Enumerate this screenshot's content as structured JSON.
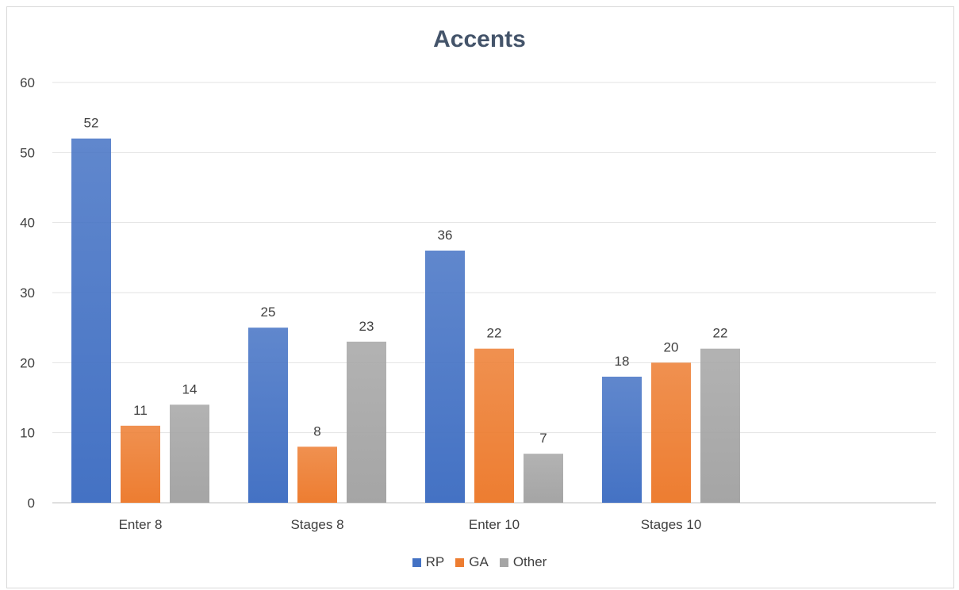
{
  "chart_data": {
    "type": "bar",
    "title": "Accents",
    "categories": [
      "Enter 8",
      "Stages 8",
      "Enter 10",
      "Stages 10"
    ],
    "series": [
      {
        "name": "RP",
        "values": [
          52,
          25,
          36,
          18
        ],
        "color": "#4472c4"
      },
      {
        "name": "GA",
        "values": [
          11,
          8,
          22,
          20
        ],
        "color": "#ed7d31"
      },
      {
        "name": "Other",
        "values": [
          14,
          23,
          7,
          22
        ],
        "color": "#a5a5a5"
      }
    ],
    "ylim": [
      0,
      60
    ],
    "yticks": [
      0,
      10,
      20,
      30,
      40,
      50,
      60
    ],
    "grid": true,
    "legend_position": "bottom"
  }
}
